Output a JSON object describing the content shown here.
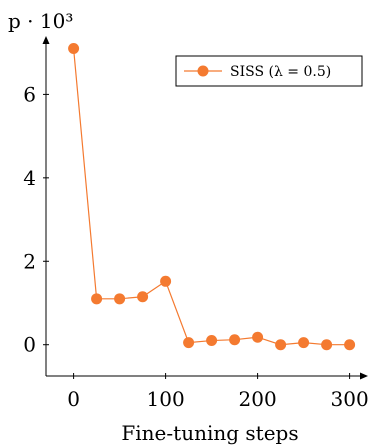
{
  "chart_data": {
    "type": "line",
    "ylabel": "p · 10³",
    "xlabel": "Fine-tuning steps",
    "xlim": [
      -30,
      320
    ],
    "ylim": [
      -0.75,
      7.4
    ],
    "xticks": [
      0,
      100,
      200,
      300
    ],
    "yticks": [
      0,
      2,
      4,
      6
    ],
    "xtick_labels": [
      "0",
      "100",
      "200",
      "300"
    ],
    "ytick_labels": [
      "0",
      "2",
      "4",
      "6"
    ],
    "grid": false,
    "legend_position": "top-right",
    "series": [
      {
        "name": "SISS (λ = 0.5)",
        "color": "#F47A30",
        "x": [
          0,
          25,
          50,
          75,
          100,
          125,
          150,
          175,
          200,
          225,
          250,
          275,
          300
        ],
        "y": [
          7.1,
          1.1,
          1.1,
          1.15,
          1.52,
          0.05,
          0.1,
          0.12,
          0.18,
          0.0,
          0.05,
          0.0,
          0.0
        ]
      }
    ]
  }
}
